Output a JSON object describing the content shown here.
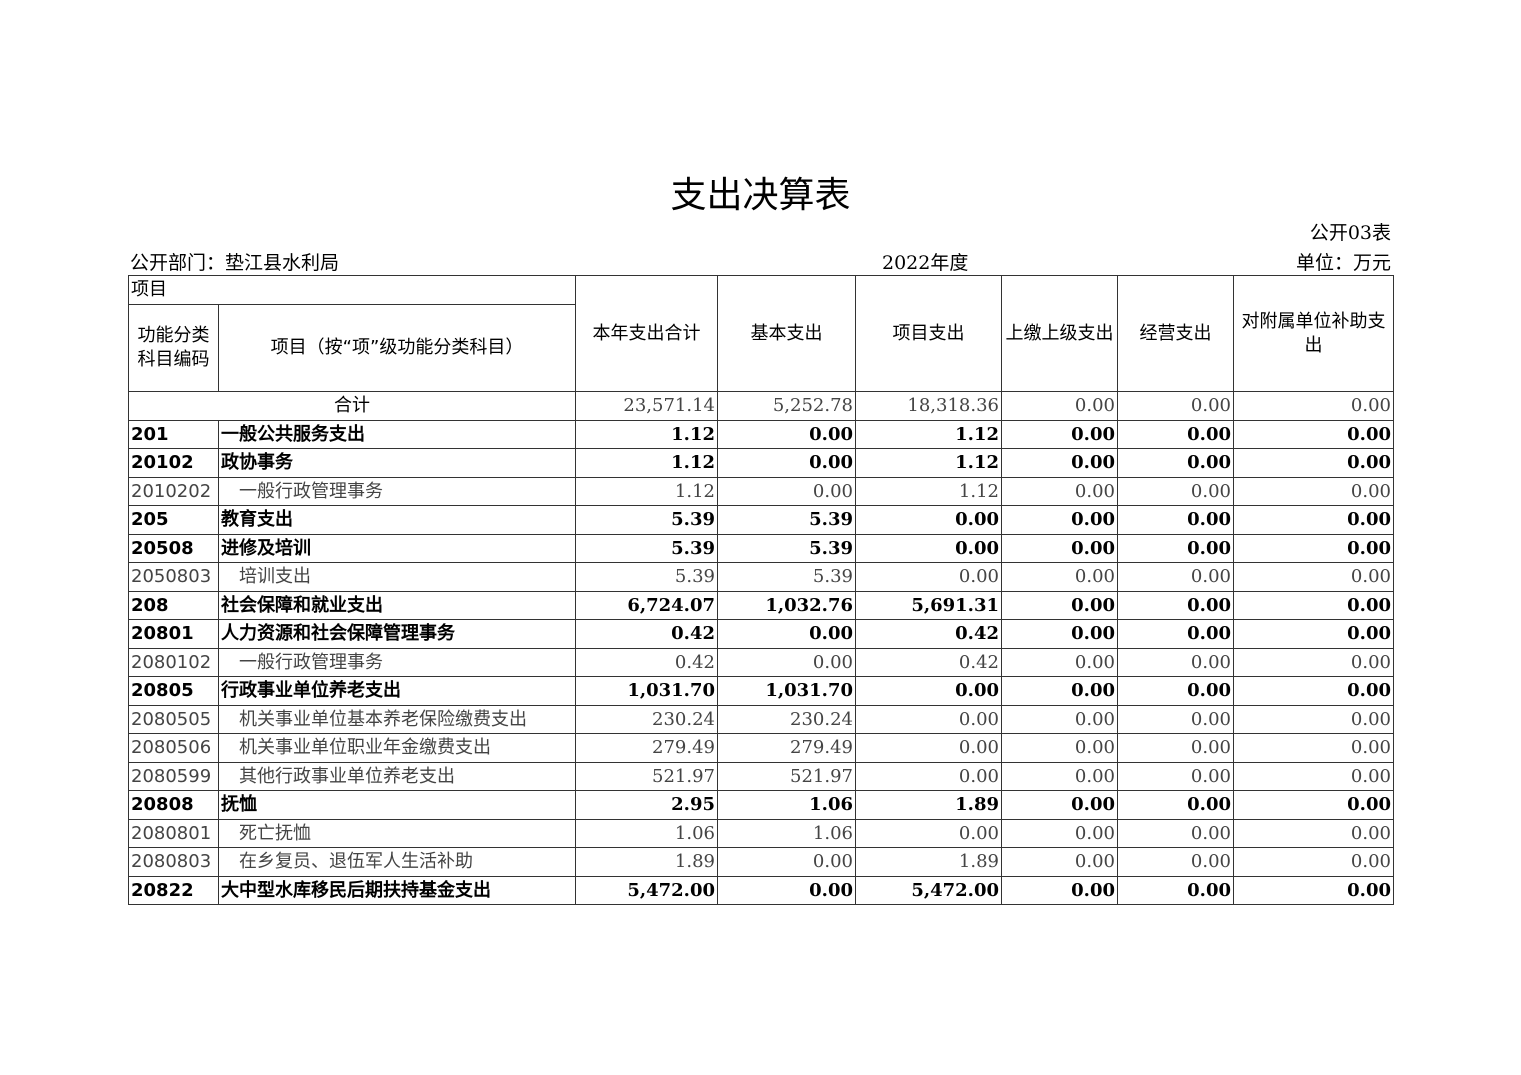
{
  "title": "支出决算表",
  "table_no": "公开03表",
  "department": "公开部门：垫江县水利局",
  "year": "2022年度",
  "unit": "单位：万元",
  "headers": {
    "item": "项目",
    "code": "功能分类科目编码",
    "name": "项目（按“项”级功能分类科目）",
    "total": "本年支出合计",
    "basic": "基本支出",
    "project": "项目支出",
    "upper": "上缴上级支出",
    "business": "经营支出",
    "subsidy": "对附属单位补助支出"
  },
  "total_row": {
    "label": "合计",
    "values": [
      "23,571.14",
      "5,252.78",
      "18,318.36",
      "0.00",
      "0.00",
      "0.00"
    ]
  },
  "rows": [
    {
      "code": "201",
      "name": "一般公共服务支出",
      "level": "b",
      "values": [
        "1.12",
        "0.00",
        "1.12",
        "0.00",
        "0.00",
        "0.00"
      ]
    },
    {
      "code": "20102",
      "name": "政协事务",
      "level": "b",
      "values": [
        "1.12",
        "0.00",
        "1.12",
        "0.00",
        "0.00",
        "0.00"
      ]
    },
    {
      "code": "2010202",
      "name": "一般行政管理事务",
      "level": "d",
      "values": [
        "1.12",
        "0.00",
        "1.12",
        "0.00",
        "0.00",
        "0.00"
      ]
    },
    {
      "code": "205",
      "name": "教育支出",
      "level": "b",
      "values": [
        "5.39",
        "5.39",
        "0.00",
        "0.00",
        "0.00",
        "0.00"
      ]
    },
    {
      "code": "20508",
      "name": "进修及培训",
      "level": "b",
      "values": [
        "5.39",
        "5.39",
        "0.00",
        "0.00",
        "0.00",
        "0.00"
      ]
    },
    {
      "code": "2050803",
      "name": "培训支出",
      "level": "d",
      "values": [
        "5.39",
        "5.39",
        "0.00",
        "0.00",
        "0.00",
        "0.00"
      ]
    },
    {
      "code": "208",
      "name": "社会保障和就业支出",
      "level": "b",
      "values": [
        "6,724.07",
        "1,032.76",
        "5,691.31",
        "0.00",
        "0.00",
        "0.00"
      ]
    },
    {
      "code": "20801",
      "name": "人力资源和社会保障管理事务",
      "level": "b",
      "values": [
        "0.42",
        "0.00",
        "0.42",
        "0.00",
        "0.00",
        "0.00"
      ]
    },
    {
      "code": "2080102",
      "name": "一般行政管理事务",
      "level": "d",
      "values": [
        "0.42",
        "0.00",
        "0.42",
        "0.00",
        "0.00",
        "0.00"
      ]
    },
    {
      "code": "20805",
      "name": "行政事业单位养老支出",
      "level": "b",
      "values": [
        "1,031.70",
        "1,031.70",
        "0.00",
        "0.00",
        "0.00",
        "0.00"
      ]
    },
    {
      "code": "2080505",
      "name": "机关事业单位基本养老保险缴费支出",
      "level": "d",
      "values": [
        "230.24",
        "230.24",
        "0.00",
        "0.00",
        "0.00",
        "0.00"
      ]
    },
    {
      "code": "2080506",
      "name": "机关事业单位职业年金缴费支出",
      "level": "d",
      "values": [
        "279.49",
        "279.49",
        "0.00",
        "0.00",
        "0.00",
        "0.00"
      ]
    },
    {
      "code": "2080599",
      "name": "其他行政事业单位养老支出",
      "level": "d",
      "values": [
        "521.97",
        "521.97",
        "0.00",
        "0.00",
        "0.00",
        "0.00"
      ]
    },
    {
      "code": "20808",
      "name": "抚恤",
      "level": "b",
      "values": [
        "2.95",
        "1.06",
        "1.89",
        "0.00",
        "0.00",
        "0.00"
      ]
    },
    {
      "code": "2080801",
      "name": "死亡抚恤",
      "level": "d",
      "values": [
        "1.06",
        "1.06",
        "0.00",
        "0.00",
        "0.00",
        "0.00"
      ]
    },
    {
      "code": "2080803",
      "name": "在乡复员、退伍军人生活补助",
      "level": "d",
      "values": [
        "1.89",
        "0.00",
        "1.89",
        "0.00",
        "0.00",
        "0.00"
      ]
    },
    {
      "code": "20822",
      "name": "大中型水库移民后期扶持基金支出",
      "level": "b",
      "values": [
        "5,472.00",
        "0.00",
        "5,472.00",
        "0.00",
        "0.00",
        "0.00"
      ]
    }
  ]
}
